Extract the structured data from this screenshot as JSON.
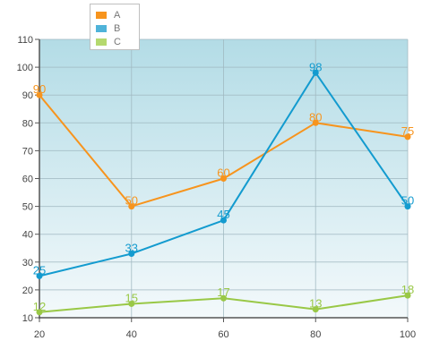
{
  "chart_data": {
    "type": "line",
    "x": [
      20,
      40,
      60,
      80,
      100
    ],
    "series": [
      {
        "name": "A",
        "values": [
          90,
          50,
          60,
          80,
          75
        ],
        "color": "#f7941d"
      },
      {
        "name": "B",
        "values": [
          25,
          33,
          45,
          98,
          50
        ],
        "color": "#139bcf"
      },
      {
        "name": "C",
        "values": [
          12,
          15,
          17,
          13,
          18
        ],
        "color": "#99c846"
      }
    ],
    "xlim": [
      20,
      100
    ],
    "ylim": [
      10,
      110
    ],
    "x_ticks": [
      "20",
      "40",
      "60",
      "80",
      "100"
    ],
    "y_ticks": [
      "10",
      "20",
      "30",
      "40",
      "50",
      "60",
      "70",
      "80",
      "90",
      "100",
      "110"
    ],
    "grid": true,
    "legend": "top-left",
    "background_gradient": [
      "#b3dce6",
      "#f3f9fb"
    ]
  }
}
